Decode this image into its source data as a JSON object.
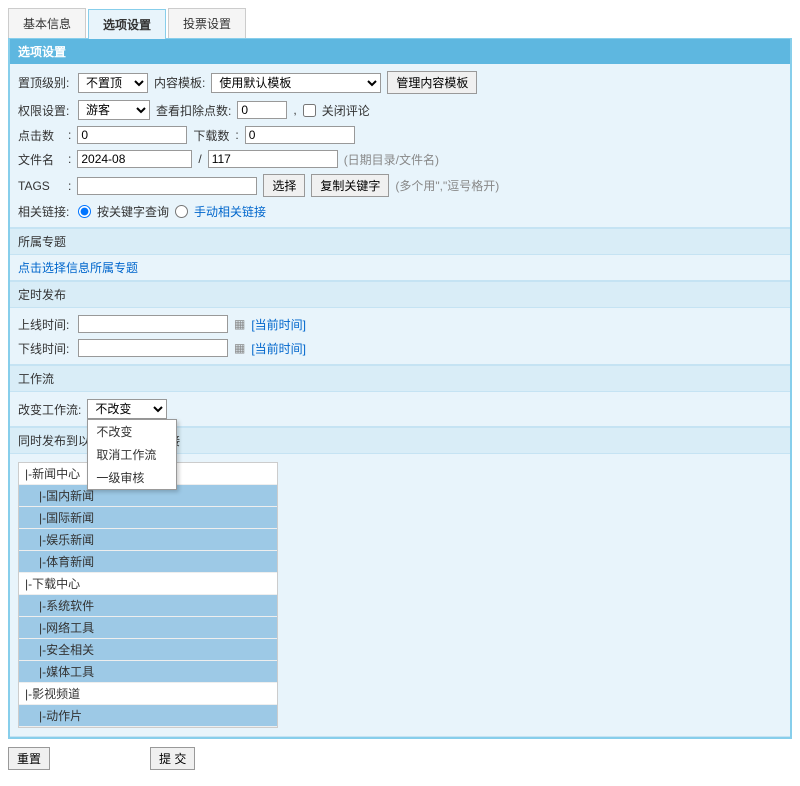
{
  "tabs": {
    "basic": "基本信息",
    "options": "选项设置",
    "vote": "投票设置"
  },
  "panel_title": "选项设置",
  "r1": {
    "top_label": "置顶级别:",
    "top_sel": "不置顶",
    "tpl_label": "内容模板:",
    "tpl_sel": "使用默认模板",
    "tpl_btn": "管理内容模板"
  },
  "r2": {
    "perm_label": "权限设置:",
    "perm_sel": "游客",
    "deduct_label": "查看扣除点数:",
    "deduct_val": "0",
    "comma": ",",
    "close_cmt": "关闭评论"
  },
  "r3": {
    "click_label": "点击数",
    "click_sep": ":",
    "click_val": "0",
    "dl_label": "下载数",
    "dl_val": "0"
  },
  "r4": {
    "file_label": "文件名",
    "sep": ":",
    "dir": "2024-08",
    "slash": "/",
    "name": "117",
    "hint": "(日期目录/文件名)"
  },
  "r5": {
    "tags_label": "TAGS",
    "sep": ":",
    "tags_val": "",
    "sel_btn": "选择",
    "copy_btn": "复制关键字",
    "hint": "(多个用\",\"逗号格开)"
  },
  "r6": {
    "rel_label": "相关链接:",
    "opt1": "按关键字查询",
    "opt2": "手动相关链接"
  },
  "topic": {
    "title": "所属专题",
    "link": "点击选择信息所属专题"
  },
  "sched": {
    "title": "定时发布",
    "on_label": "上线时间:",
    "off_label": "下线时间:",
    "now": "[当前时间]"
  },
  "wf": {
    "title": "工作流",
    "change_label": "改变工作流:",
    "sel": "不改变",
    "opts": [
      "不改变",
      "取消工作流",
      "一级审核"
    ]
  },
  "pub": {
    "title_prefix": "同时发布到以",
    "title_suffix": "搜索引链接"
  },
  "tree": [
    {
      "t": "|-新闻中心",
      "l": 0
    },
    {
      "t": "|-国内新闻",
      "l": 1
    },
    {
      "t": "|-国际新闻",
      "l": 1
    },
    {
      "t": "|-娱乐新闻",
      "l": 1
    },
    {
      "t": "|-体育新闻",
      "l": 1
    },
    {
      "t": "|-下载中心",
      "l": 0
    },
    {
      "t": "|-系统软件",
      "l": 1
    },
    {
      "t": "|-网络工具",
      "l": 1
    },
    {
      "t": "|-安全相关",
      "l": 1
    },
    {
      "t": "|-媒体工具",
      "l": 1
    },
    {
      "t": "|-影视频道",
      "l": 0
    },
    {
      "t": "|-动作片",
      "l": 1
    }
  ],
  "footer": {
    "reset": "重置",
    "submit": "提 交"
  }
}
